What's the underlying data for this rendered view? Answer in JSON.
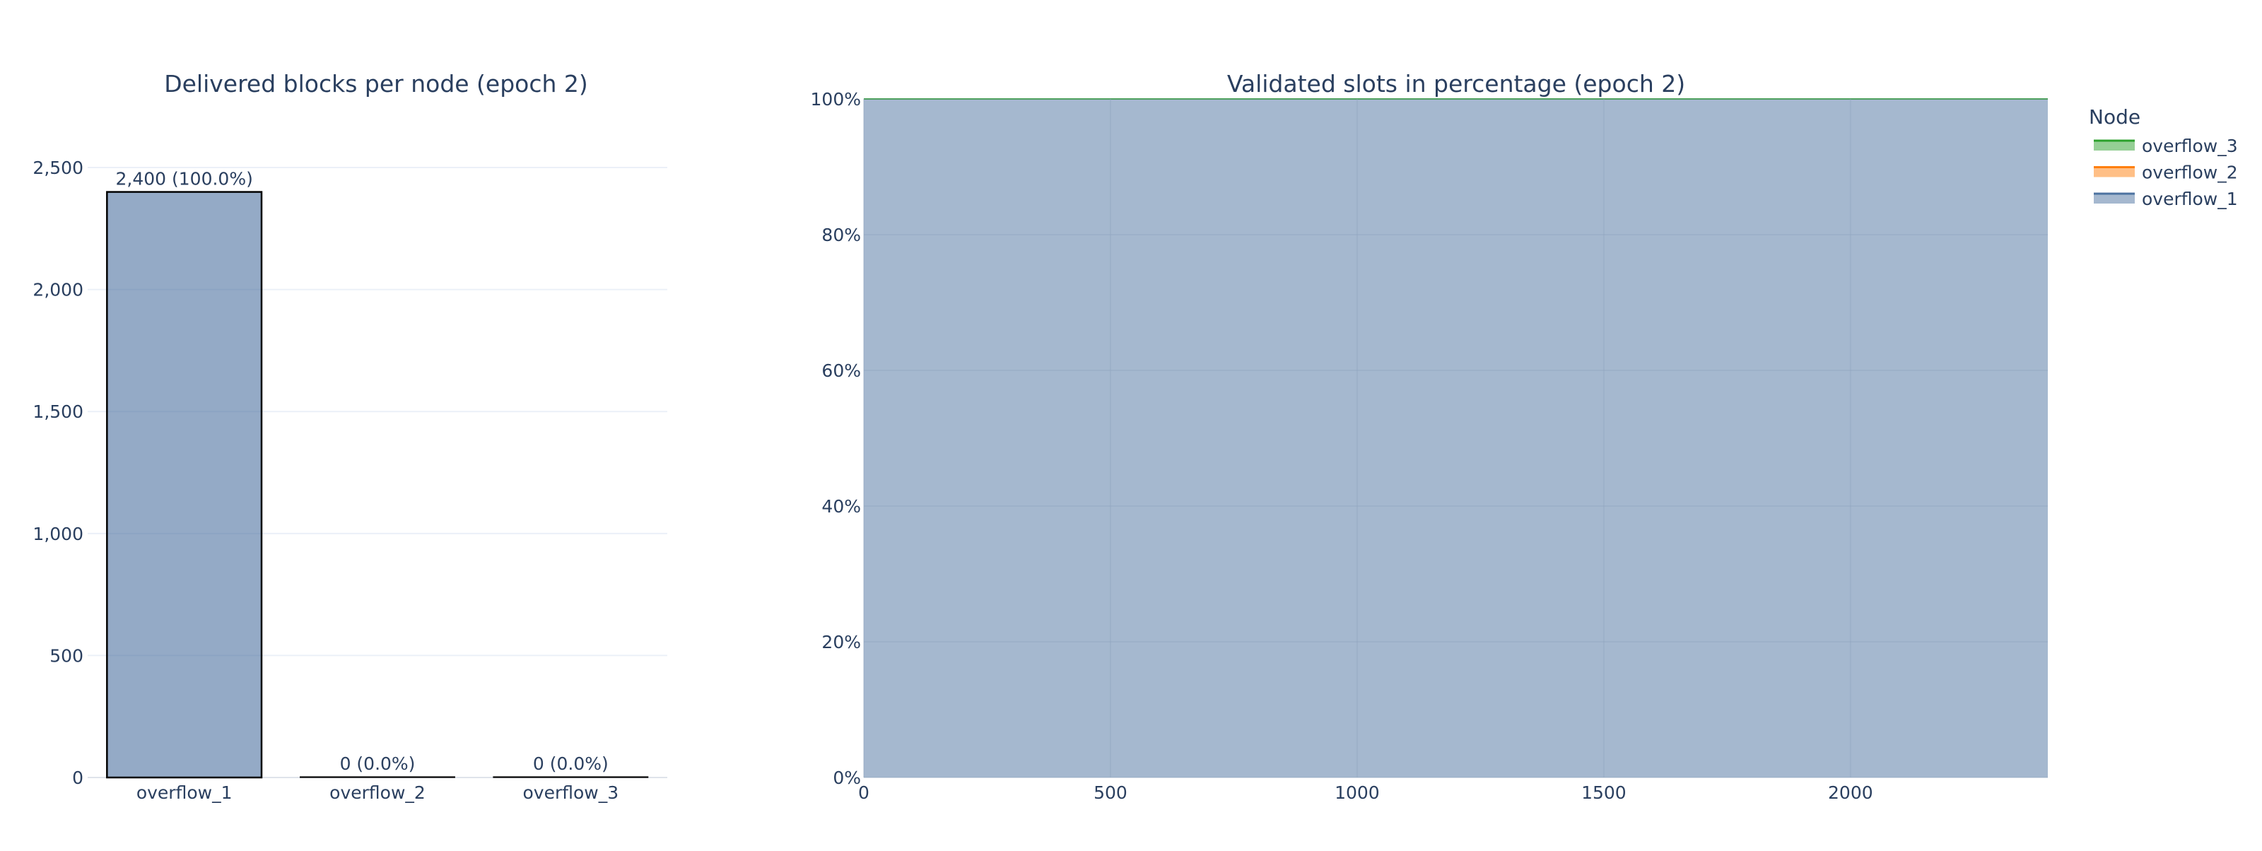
{
  "chart_data": [
    {
      "type": "bar",
      "title": "Delivered blocks per node (epoch 2)",
      "categories": [
        "overflow_1",
        "overflow_2",
        "overflow_3"
      ],
      "values": [
        2400,
        0,
        0
      ],
      "data_labels": [
        "2,400 (100.0%)",
        "0 (0.0%)",
        "0 (0.0%)"
      ],
      "ylim": [
        0,
        2700
      ],
      "yticks": [
        0,
        500,
        1000,
        1500,
        2000,
        2500
      ],
      "ytick_labels": [
        "0",
        "500",
        "1,000",
        "1,500",
        "2,000",
        "2,500"
      ],
      "grid": true,
      "bar_color": "#4c72a0",
      "bar_opacity": 0.6,
      "bar_outline": "#000000"
    },
    {
      "type": "area",
      "stacked": true,
      "normalized_percent": true,
      "title": "Validated slots in percentage (epoch 2)",
      "xlim": [
        0,
        2400
      ],
      "ylim": [
        0,
        100
      ],
      "xticks": [
        0,
        500,
        1000,
        1500,
        2000
      ],
      "xtick_labels": [
        "0",
        "500",
        "1000",
        "1500",
        "2000"
      ],
      "yticks": [
        0,
        20,
        40,
        60,
        80,
        100
      ],
      "ytick_labels": [
        "0%",
        "20%",
        "40%",
        "60%",
        "80%",
        "100%"
      ],
      "grid": true,
      "legend": {
        "title": "Node",
        "placement": "top-right-outside",
        "order": [
          "overflow_3",
          "overflow_2",
          "overflow_1"
        ]
      },
      "series": [
        {
          "name": "overflow_1",
          "color": "#4c72a0",
          "x": [
            0,
            2400
          ],
          "values": [
            100,
            100
          ]
        },
        {
          "name": "overflow_2",
          "color": "#ff7f0e",
          "x": [
            0,
            2400
          ],
          "values": [
            0,
            0
          ]
        },
        {
          "name": "overflow_3",
          "color": "#2ca02c",
          "x": [
            0,
            2400
          ],
          "values": [
            0,
            0
          ]
        }
      ]
    }
  ]
}
